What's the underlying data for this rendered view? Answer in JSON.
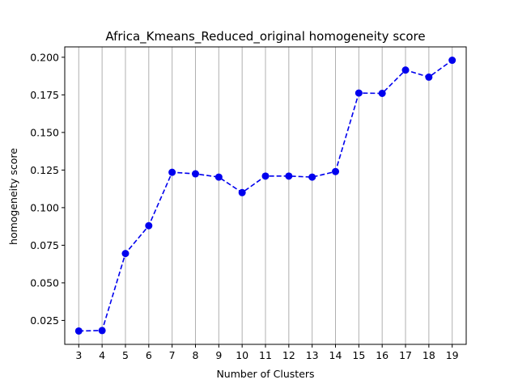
{
  "chart_data": {
    "type": "line",
    "title": "Africa_Kmeans_Reduced_original homogeneity score",
    "xlabel": "Number of Clusters",
    "ylabel": "homogeneity score",
    "x": [
      3,
      4,
      5,
      6,
      7,
      8,
      9,
      10,
      11,
      12,
      13,
      14,
      15,
      16,
      17,
      18,
      19
    ],
    "series": [
      {
        "values": [
          0.018,
          0.0183,
          0.0695,
          0.088,
          0.1235,
          0.1225,
          0.1203,
          0.11,
          0.121,
          0.121,
          0.1203,
          0.124,
          0.1762,
          0.176,
          0.1915,
          0.1868,
          0.198
        ],
        "color": "#0000ee",
        "line_style": "dashed",
        "marker": "circle"
      }
    ],
    "xlim": [
      2.4,
      19.6
    ],
    "ylim": [
      0.0091,
      0.2069
    ],
    "yticks": [
      "0.025",
      "0.050",
      "0.075",
      "0.100",
      "0.125",
      "0.150",
      "0.175",
      "0.200"
    ],
    "xticks": [
      "3",
      "4",
      "5",
      "6",
      "7",
      "8",
      "9",
      "10",
      "11",
      "12",
      "13",
      "14",
      "15",
      "16",
      "17",
      "18",
      "19"
    ],
    "grid": "vertical",
    "grid_color": "#b0b0b0"
  }
}
